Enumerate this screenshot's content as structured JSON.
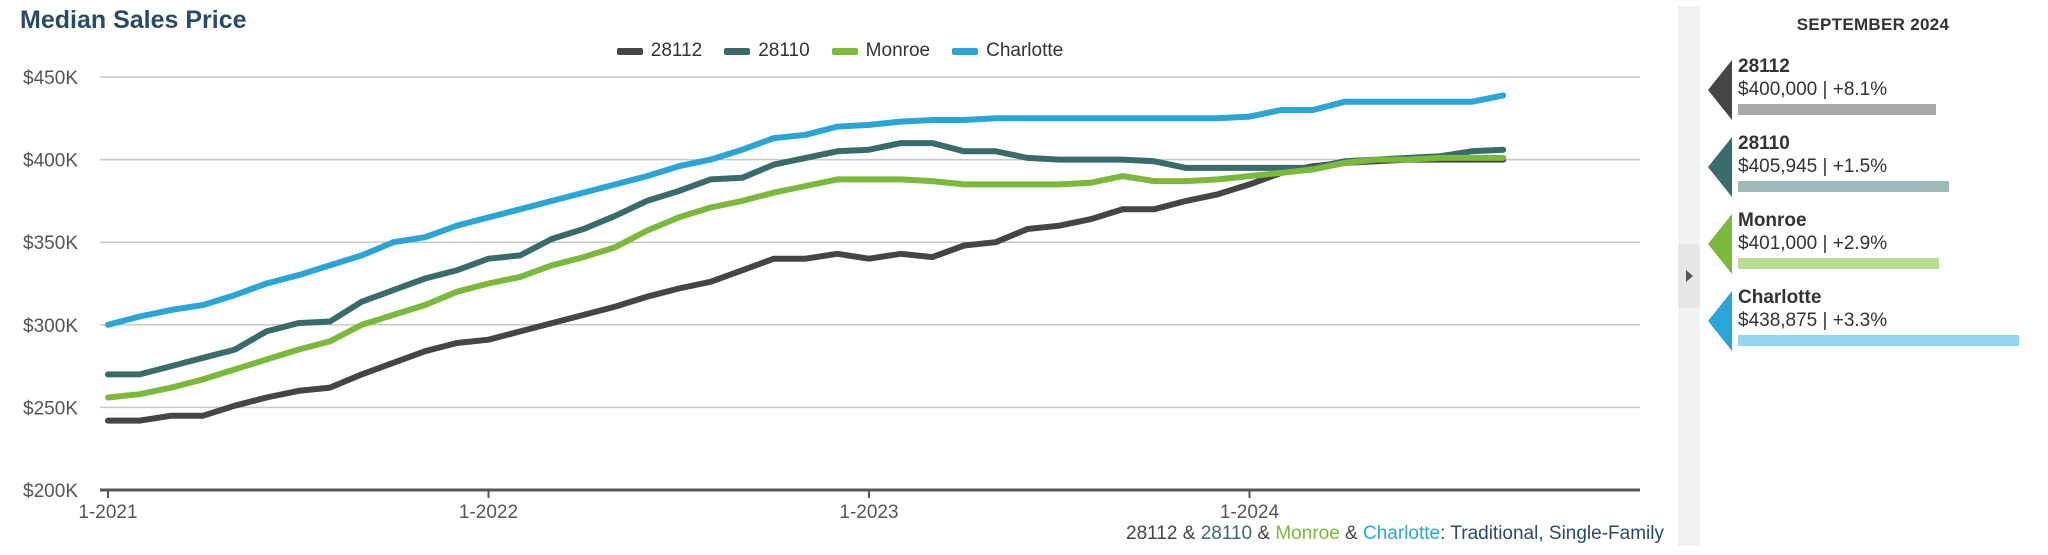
{
  "title": "Median Sales Price",
  "subtitle_parts": [
    {
      "text": "28112",
      "color": "#454545"
    },
    {
      "text": " & ",
      "color": "#444444"
    },
    {
      "text": "28110",
      "color": "#3a6b6b"
    },
    {
      "text": " & ",
      "color": "#444444"
    },
    {
      "text": "Monroe",
      "color": "#7ab93a"
    },
    {
      "text": " & ",
      "color": "#444444"
    },
    {
      "text": "Charlotte",
      "color": "#2aa5d8"
    },
    {
      "text": ": Traditional, Single-Family",
      "color": "#2b4a6a"
    }
  ],
  "panel": {
    "month_label": "SEPTEMBER 2024",
    "cards": [
      {
        "name": "28112",
        "value": "$400,000 | +8.1%",
        "color": "#454545",
        "bar_color": "#a8a8a8",
        "bar_fraction": 0.6
      },
      {
        "name": "28110",
        "value": "$405,945 | +1.5%",
        "color": "#3a6b6b",
        "bar_color": "#9dbcb9",
        "bar_fraction": 0.64
      },
      {
        "name": "Monroe",
        "value": "$401,000 | +2.9%",
        "color": "#7ab93a",
        "bar_color": "#b9dc94",
        "bar_fraction": 0.61
      },
      {
        "name": "Charlotte",
        "value": "$438,875 | +3.3%",
        "color": "#2aa5d8",
        "bar_color": "#93d4ee",
        "bar_fraction": 0.85
      }
    ]
  },
  "chart_data": {
    "type": "line",
    "title": "Median Sales Price",
    "xlabel": "",
    "ylabel": "",
    "x_ticks": [
      "1-2021",
      "1-2022",
      "1-2023",
      "1-2024"
    ],
    "y_ticks": [
      "$200K",
      "$250K",
      "$300K",
      "$350K",
      "$400K",
      "$450K"
    ],
    "ylim": [
      200000,
      450000
    ],
    "x": [
      "1-2021",
      "2-2021",
      "3-2021",
      "4-2021",
      "5-2021",
      "6-2021",
      "7-2021",
      "8-2021",
      "9-2021",
      "10-2021",
      "11-2021",
      "12-2021",
      "1-2022",
      "2-2022",
      "3-2022",
      "4-2022",
      "5-2022",
      "6-2022",
      "7-2022",
      "8-2022",
      "9-2022",
      "10-2022",
      "11-2022",
      "12-2022",
      "1-2023",
      "2-2023",
      "3-2023",
      "4-2023",
      "5-2023",
      "6-2023",
      "7-2023",
      "8-2023",
      "9-2023",
      "10-2023",
      "11-2023",
      "12-2023",
      "1-2024",
      "2-2024",
      "3-2024",
      "4-2024",
      "5-2024",
      "6-2024",
      "7-2024",
      "8-2024",
      "9-2024"
    ],
    "grid": true,
    "legend": "top-center",
    "series": [
      {
        "name": "28112",
        "color": "#454545",
        "values": [
          242000,
          242000,
          245000,
          245000,
          251000,
          256000,
          260000,
          262000,
          270000,
          277000,
          284000,
          289000,
          291000,
          296000,
          301000,
          306000,
          311000,
          317000,
          322000,
          326000,
          333000,
          340000,
          340000,
          343000,
          340000,
          343000,
          341000,
          348000,
          350000,
          358000,
          360000,
          364000,
          370000,
          370000,
          375000,
          379000,
          385000,
          392000,
          396000,
          398000,
          399000,
          400000,
          400000,
          400000,
          400000
        ]
      },
      {
        "name": "28110",
        "color": "#3a6b6b",
        "values": [
          270000,
          270000,
          275000,
          280000,
          285000,
          296000,
          301000,
          302000,
          314000,
          321000,
          328000,
          333000,
          340000,
          342000,
          352000,
          358000,
          366000,
          375000,
          381000,
          388000,
          389000,
          397000,
          401000,
          405000,
          406000,
          410000,
          410000,
          405000,
          405000,
          401000,
          400000,
          400000,
          400000,
          399000,
          395000,
          395000,
          395000,
          395000,
          395000,
          399000,
          400000,
          401000,
          402000,
          405000,
          405945
        ]
      },
      {
        "name": "Monroe",
        "color": "#7ab93a",
        "values": [
          256000,
          258000,
          262000,
          267000,
          273000,
          279000,
          285000,
          290000,
          300000,
          306000,
          312000,
          320000,
          325000,
          329000,
          336000,
          341000,
          347000,
          357000,
          365000,
          371000,
          375000,
          380000,
          384000,
          388000,
          388000,
          388000,
          387000,
          385000,
          385000,
          385000,
          385000,
          386000,
          390000,
          387000,
          387000,
          388000,
          390000,
          392000,
          394000,
          398000,
          400000,
          400000,
          401000,
          401000,
          401000
        ]
      },
      {
        "name": "Charlotte",
        "color": "#2aa5d8",
        "values": [
          300000,
          305000,
          309000,
          312000,
          318000,
          325000,
          330000,
          336000,
          342000,
          350000,
          353000,
          360000,
          365000,
          370000,
          375000,
          380000,
          385000,
          390000,
          396000,
          400000,
          406000,
          413000,
          415000,
          420000,
          421000,
          423000,
          424000,
          424000,
          425000,
          425000,
          425000,
          425000,
          425000,
          425000,
          425000,
          425000,
          426000,
          430000,
          430000,
          435000,
          435000,
          435000,
          435000,
          435000,
          438875
        ]
      }
    ]
  }
}
